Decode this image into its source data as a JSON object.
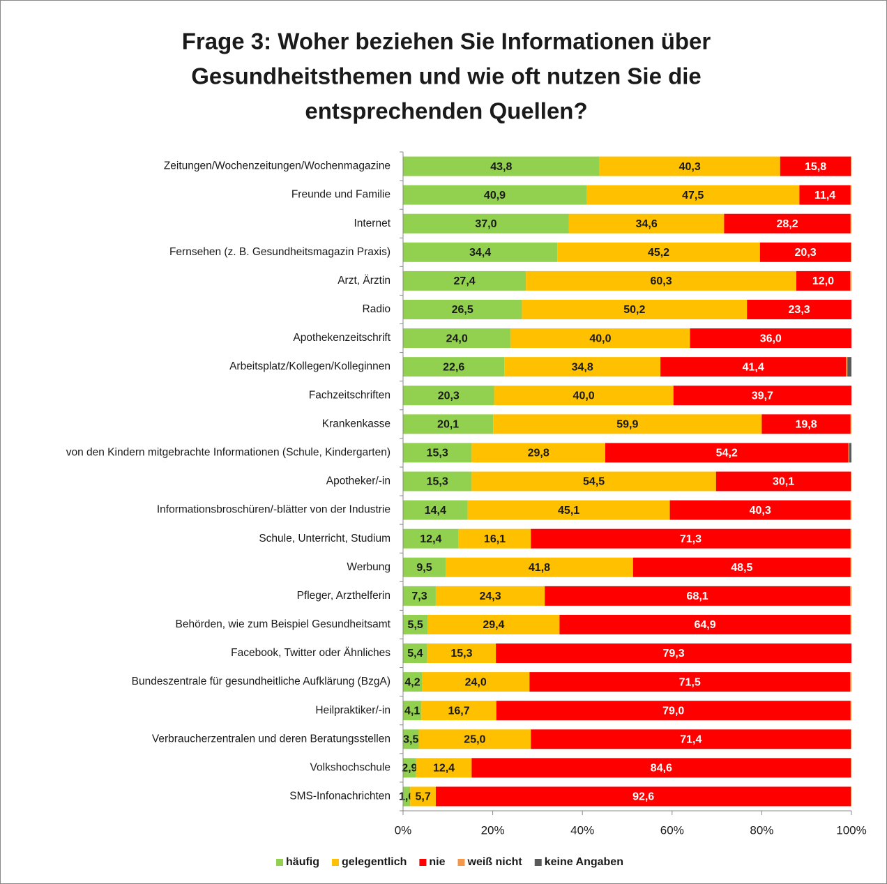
{
  "chart_data": {
    "type": "stacked_barh",
    "title": [
      "Frage 3: Woher beziehen Sie Informationen über",
      "Gesundheitsthemen und wie oft nutzen Sie die",
      "entsprechenden Quellen?"
    ],
    "categories": [
      "Zeitungen/Wochenzeitungen/Wochenmagazine",
      "Freunde und Familie",
      "Internet",
      "Fernsehen (z. B. Gesundheitsmagazin Praxis)",
      "Arzt, Ärztin",
      "Radio",
      "Apothekenzeitschrift",
      "Arbeitsplatz/Kollegen/Kolleginnen",
      "Fachzeitschriften",
      "Krankenkasse",
      "von den Kindern mitgebrachte Informationen (Schule, Kindergarten)",
      "Apotheker/-in",
      "Informationsbroschüren/-blätter von der Industrie",
      "Schule, Unterricht, Studium",
      "Werbung",
      "Pfleger, Arzthelferin",
      "Behörden, wie zum Beispiel Gesundheitsamt",
      "Facebook, Twitter oder Ähnliches",
      "Bundeszentrale für gesundheitliche Aufklärung (BzgA)",
      "Heilpraktiker/-in",
      "Verbraucherzentralen und deren Beratungsstellen",
      "Volkshochschule",
      "SMS-Infonachrichten"
    ],
    "series": [
      {
        "name": "häufig",
        "color": "#92d050",
        "label_color": "#1a1a1a",
        "values": [
          43.8,
          40.9,
          37.0,
          34.4,
          27.4,
          26.5,
          24.0,
          22.6,
          20.3,
          20.1,
          15.3,
          15.3,
          14.4,
          12.4,
          9.5,
          7.3,
          5.5,
          5.4,
          4.2,
          4.1,
          3.5,
          2.9,
          1.6
        ],
        "value_labels": [
          "43,8",
          "40,9",
          "37,0",
          "34,4",
          "27,4",
          "26,5",
          "24,0",
          "22,6",
          "20,3",
          "20,1",
          "15,3",
          "15,3",
          "14,4",
          "12,4",
          "9,5",
          "7,3",
          "5,5",
          "5,4",
          "4,2",
          "4,1",
          "3,5",
          "2,9",
          "1,6"
        ]
      },
      {
        "name": "gelegentlich",
        "color": "#ffc000",
        "label_color": "#1a1a1a",
        "values": [
          40.3,
          47.5,
          34.6,
          45.2,
          60.3,
          50.2,
          40.0,
          34.8,
          40.0,
          59.9,
          29.8,
          54.5,
          45.1,
          16.1,
          41.8,
          24.3,
          29.4,
          15.3,
          24.0,
          16.7,
          25.0,
          12.4,
          5.7
        ],
        "value_labels": [
          "40,3",
          "47,5",
          "34,6",
          "45,2",
          "60,3",
          "50,2",
          "40,0",
          "34,8",
          "40,0",
          "59,9",
          "29,8",
          "54,5",
          "45,1",
          "16,1",
          "41,8",
          "24,3",
          "29,4",
          "15,3",
          "24,0",
          "16,7",
          "25,0",
          "12,4",
          "5,7"
        ]
      },
      {
        "name": "nie",
        "color": "#ff0000",
        "label_color": "#ffffff",
        "values": [
          15.8,
          11.4,
          28.2,
          20.3,
          12.0,
          23.3,
          36.0,
          41.4,
          39.7,
          19.8,
          54.2,
          30.1,
          40.3,
          71.3,
          48.5,
          68.1,
          64.9,
          79.3,
          71.5,
          79.0,
          71.4,
          84.6,
          92.6
        ],
        "value_labels": [
          "15,8",
          "11,4",
          "28,2",
          "20,3",
          "12,0",
          "23,3",
          "36,0",
          "41,4",
          "39,7",
          "19,8",
          "54,2",
          "30,1",
          "40,3",
          "71,3",
          "48,5",
          "68,1",
          "64,9",
          "79,3",
          "71,5",
          "79,0",
          "71,4",
          "84,6",
          "92,6"
        ]
      },
      {
        "name": "weiß nicht",
        "color": "#f79646",
        "values": [
          0.1,
          0.2,
          0.2,
          0.1,
          0.3,
          0,
          0,
          0.3,
          0,
          0.2,
          0.2,
          0.1,
          0.2,
          0.2,
          0.2,
          0.3,
          0.2,
          0,
          0.3,
          0.2,
          0.1,
          0.1,
          0.1
        ]
      },
      {
        "name": "keine Angaben",
        "color": "#595959",
        "values": [
          0,
          0,
          0,
          0,
          0,
          0,
          0,
          0.9,
          0,
          0,
          0.5,
          0,
          0,
          0,
          0,
          0,
          0,
          0,
          0,
          0,
          0,
          0,
          0
        ]
      }
    ],
    "xlim": [
      0,
      100
    ],
    "xticks": [
      {
        "value": 0,
        "label": "0%"
      },
      {
        "value": 20,
        "label": "20%"
      },
      {
        "value": 40,
        "label": "40%"
      },
      {
        "value": 60,
        "label": "60%"
      },
      {
        "value": 80,
        "label": "80%"
      },
      {
        "value": 100,
        "label": "100%"
      }
    ],
    "legend": "bottom"
  }
}
